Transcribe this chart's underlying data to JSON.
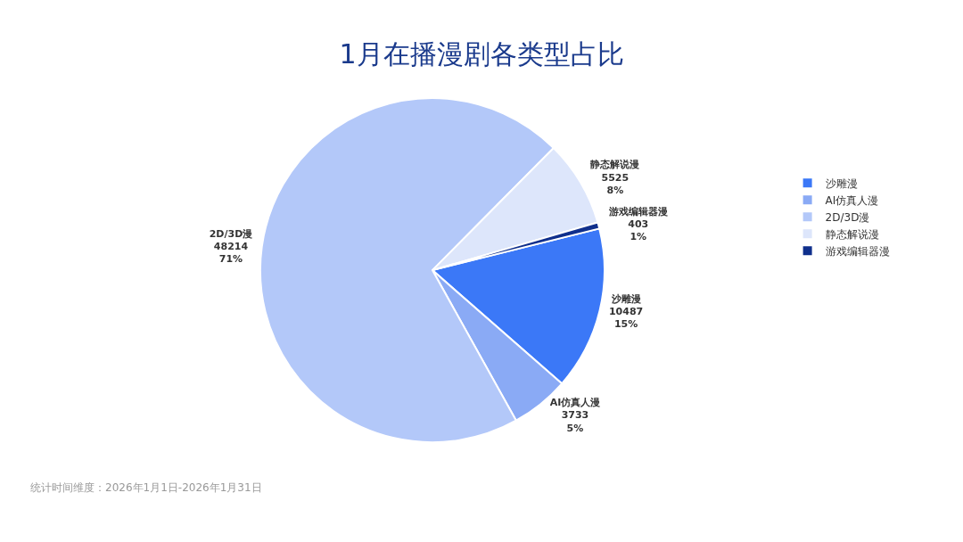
{
  "chart_data": {
    "type": "pie",
    "title": "1月在播漫剧各类型占比",
    "categories": [
      "沙雕漫",
      "AI仿真人漫",
      "2D/3D漫",
      "静态解说漫",
      "游戏编辑器漫"
    ],
    "values": [
      10487,
      3733,
      48214,
      5525,
      403
    ],
    "value_labels": [
      "10487\n15%",
      "3733\n5%",
      "48214\n71%",
      "5525\n8%",
      "403\n1%"
    ],
    "colors": [
      "#3b78f7",
      "#8aaaf5",
      "#b3c8f9",
      "#dde6fb",
      "#0f2f8c"
    ],
    "legend": "right",
    "annotations": [
      "统计时间维度：2026年1月1日-2026年1月31日"
    ]
  }
}
